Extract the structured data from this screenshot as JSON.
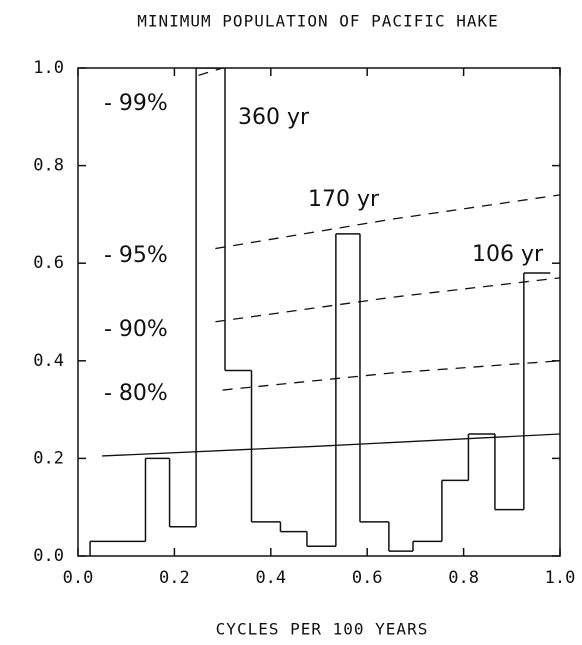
{
  "chart_data": {
    "type": "histogram",
    "title": "MINIMUM POPULATION OF PACIFIC HAKE",
    "x_label": "CYCLES PER 100 YEARS",
    "bins": [
      0.025,
      0.14,
      0.19,
      0.245,
      0.305,
      0.36,
      0.42,
      0.475,
      0.535,
      0.585,
      0.645,
      0.695,
      0.755,
      0.81,
      0.865,
      0.925,
      0.98
    ],
    "values": [
      0.03,
      0.2,
      0.06,
      1.0,
      0.38,
      0.07,
      0.05,
      0.02,
      0.66,
      0.07,
      0.01,
      0.03,
      0.155,
      0.25,
      0.095,
      0.58
    ],
    "color": "#111111",
    "series": [
      {
        "style": "solid",
        "x": [
          0.05,
          0.5,
          1.0
        ],
        "values": [
          0.205,
          0.225,
          0.25
        ]
      },
      {
        "style": "dashed",
        "x": [
          0.3,
          0.65,
          1.0
        ],
        "values": [
          0.34,
          0.375,
          0.4
        ]
      },
      {
        "style": "dashed",
        "x": [
          0.285,
          0.65,
          1.0
        ],
        "values": [
          0.48,
          0.53,
          0.57
        ]
      },
      {
        "style": "dashed",
        "x": [
          0.285,
          0.65,
          1.0
        ],
        "values": [
          0.63,
          0.69,
          0.74
        ]
      },
      {
        "style": "dashed",
        "x": [
          0.25,
          0.3
        ],
        "values": [
          0.985,
          1.0
        ]
      }
    ],
    "annotations": [
      "- 99%",
      "- 95%",
      "- 90%",
      "- 80%",
      "360 yr",
      "170 yr",
      "106 yr"
    ],
    "xlim": [
      0,
      1
    ],
    "ylim": [
      0,
      1
    ],
    "xticks": [
      {
        "value": 0,
        "label": "0.0"
      },
      0.2,
      0.4,
      0.6,
      0.8,
      {
        "value": 1,
        "label": "1.0"
      }
    ],
    "yticks": [
      {
        "value": 0,
        "label": "0.0"
      },
      0.2,
      0.4,
      0.6,
      0.8,
      {
        "value": 1,
        "label": "1.0"
      }
    ]
  }
}
